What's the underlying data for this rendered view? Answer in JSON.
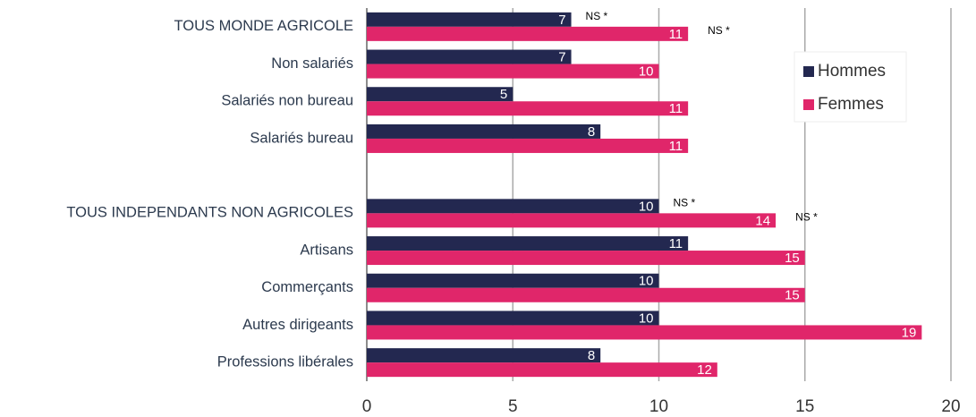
{
  "chart_data": {
    "type": "bar",
    "orientation": "horizontal",
    "categories": [
      "TOUS MONDE AGRICOLE",
      "Non salariés",
      "Salariés non bureau",
      "Salariés bureau",
      null,
      "TOUS INDEPENDANTS NON AGRICOLES",
      "Artisans",
      "Commerçants",
      "Autres dirigeants",
      "Professions libérales"
    ],
    "series": [
      {
        "name": "Hommes",
        "color": "#232850",
        "values": [
          7,
          7,
          5,
          8,
          null,
          10,
          11,
          10,
          10,
          8
        ]
      },
      {
        "name": "Femmes",
        "color": "#e0266a",
        "values": [
          11,
          10,
          11,
          11,
          null,
          14,
          15,
          15,
          19,
          12
        ]
      }
    ],
    "xlim": [
      0,
      20
    ],
    "xticks": [
      0,
      5,
      10,
      15,
      20
    ],
    "grid": true,
    "legend": "upper right",
    "annotations": [
      "NS *",
      "NS *",
      "NS *",
      "NS *"
    ]
  }
}
